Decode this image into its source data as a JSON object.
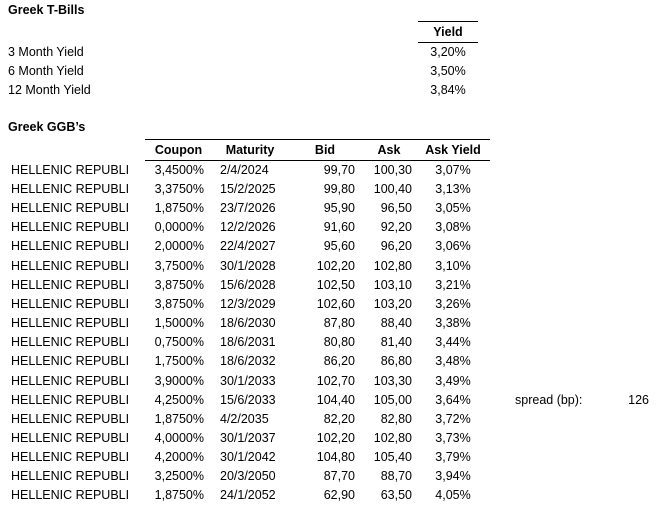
{
  "colors": {
    "text": "#000000",
    "background": "#ffffff",
    "rule": "#000000"
  },
  "tbills": {
    "title": "Greek T-Bills",
    "yield_header": "Yield",
    "rows": [
      {
        "label": "3 Month Yield",
        "value": "3,20%"
      },
      {
        "label": "6 Month Yield",
        "value": "3,50%"
      },
      {
        "label": "12 Month Yield",
        "value": "3,84%"
      }
    ]
  },
  "ggb": {
    "title": "Greek GGB’s",
    "columns": [
      "Coupon",
      "Maturity",
      "Bid",
      "Ask",
      "Ask Yield"
    ],
    "rows": [
      {
        "issuer": "HELLENIC REPUBLI",
        "coupon": "3,4500%",
        "maturity": "2/4/2024",
        "bid": "99,70",
        "ask": "100,30",
        "ask_yield": "3,07%"
      },
      {
        "issuer": "HELLENIC REPUBLI",
        "coupon": "3,3750%",
        "maturity": "15/2/2025",
        "bid": "99,80",
        "ask": "100,40",
        "ask_yield": "3,13%"
      },
      {
        "issuer": "HELLENIC REPUBLI",
        "coupon": "1,8750%",
        "maturity": "23/7/2026",
        "bid": "95,90",
        "ask": "96,50",
        "ask_yield": "3,05%"
      },
      {
        "issuer": "HELLENIC REPUBLI",
        "coupon": "0,0000%",
        "maturity": "12/2/2026",
        "bid": "91,60",
        "ask": "92,20",
        "ask_yield": "3,08%"
      },
      {
        "issuer": "HELLENIC REPUBLI",
        "coupon": "2,0000%",
        "maturity": "22/4/2027",
        "bid": "95,60",
        "ask": "96,20",
        "ask_yield": "3,06%"
      },
      {
        "issuer": "HELLENIC REPUBLI",
        "coupon": "3,7500%",
        "maturity": "30/1/2028",
        "bid": "102,20",
        "ask": "102,80",
        "ask_yield": "3,10%"
      },
      {
        "issuer": "HELLENIC REPUBLI",
        "coupon": "3,8750%",
        "maturity": "15/6/2028",
        "bid": "102,50",
        "ask": "103,10",
        "ask_yield": "3,21%"
      },
      {
        "issuer": "HELLENIC REPUBLI",
        "coupon": "3,8750%",
        "maturity": "12/3/2029",
        "bid": "102,60",
        "ask": "103,20",
        "ask_yield": "3,26%"
      },
      {
        "issuer": "HELLENIC REPUBLI",
        "coupon": "1,5000%",
        "maturity": "18/6/2030",
        "bid": "87,80",
        "ask": "88,40",
        "ask_yield": "3,38%"
      },
      {
        "issuer": "HELLENIC REPUBLI",
        "coupon": "0,7500%",
        "maturity": "18/6/2031",
        "bid": "80,80",
        "ask": "81,40",
        "ask_yield": "3,44%"
      },
      {
        "issuer": "HELLENIC REPUBLI",
        "coupon": "1,7500%",
        "maturity": "18/6/2032",
        "bid": "86,20",
        "ask": "86,80",
        "ask_yield": "3,48%"
      },
      {
        "issuer": "HELLENIC REPUBLI",
        "coupon": "3,9000%",
        "maturity": "30/1/2033",
        "bid": "102,70",
        "ask": "103,30",
        "ask_yield": "3,49%"
      },
      {
        "issuer": "HELLENIC REPUBLI",
        "coupon": "4,2500%",
        "maturity": "15/6/2033",
        "bid": "104,40",
        "ask": "105,00",
        "ask_yield": "3,64%"
      },
      {
        "issuer": "HELLENIC REPUBLI",
        "coupon": "1,8750%",
        "maturity": "4/2/2035",
        "bid": "82,20",
        "ask": "82,80",
        "ask_yield": "3,72%"
      },
      {
        "issuer": "HELLENIC REPUBLI",
        "coupon": "4,0000%",
        "maturity": "30/1/2037",
        "bid": "102,20",
        "ask": "102,80",
        "ask_yield": "3,73%"
      },
      {
        "issuer": "HELLENIC REPUBLI",
        "coupon": "4,2000%",
        "maturity": "30/1/2042",
        "bid": "104,80",
        "ask": "105,40",
        "ask_yield": "3,79%"
      },
      {
        "issuer": "HELLENIC REPUBLI",
        "coupon": "3,2500%",
        "maturity": "20/3/2050",
        "bid": "87,70",
        "ask": "88,70",
        "ask_yield": "3,94%"
      },
      {
        "issuer": "HELLENIC REPUBLI",
        "coupon": "1,8750%",
        "maturity": "24/1/2052",
        "bid": "62,90",
        "ask": "63,50",
        "ask_yield": "4,05%"
      }
    ]
  },
  "spread": {
    "label": "spread (bp):",
    "value": "126"
  }
}
